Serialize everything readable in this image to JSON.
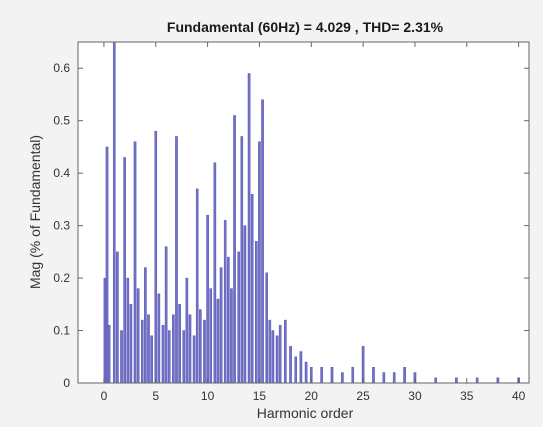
{
  "chart_data": {
    "type": "bar",
    "title": "Fundamental (60Hz) = 4.029 , THD= 2.31%",
    "xlabel": "Harmonic order",
    "ylabel": "Mag (% of Fundamental)",
    "xlim": [
      -2.5,
      41
    ],
    "ylim": [
      0,
      0.65
    ],
    "xticks": [
      0,
      5,
      10,
      15,
      20,
      25,
      30,
      35,
      40
    ],
    "yticks": [
      0,
      0.1,
      0.2,
      0.3,
      0.4,
      0.5,
      0.6
    ],
    "xtick_labels": [
      "0",
      "5",
      "10",
      "15",
      "20",
      "25",
      "30",
      "35",
      "40"
    ],
    "ytick_labels": [
      "0",
      "0.1",
      "0.2",
      "0.3",
      "0.4",
      "0.5",
      "0.6"
    ],
    "grid": false,
    "bar_color": "#7171c6",
    "bar_edge_color": "#4b4bb0",
    "series": [
      {
        "x": [
          0.1,
          0.3,
          0.5,
          1.0,
          1.3,
          1.7,
          2.0,
          2.3,
          2.6,
          3.0,
          3.3,
          3.7,
          4.0,
          4.3,
          4.6,
          5.0,
          5.3,
          5.7,
          6.0,
          6.3,
          6.7,
          7.0,
          7.3,
          7.7,
          8.0,
          8.3,
          8.7,
          9.0,
          9.3,
          9.7,
          10.0,
          10.3,
          10.7,
          11.0,
          11.3,
          11.7,
          12.0,
          12.3,
          12.6,
          13.0,
          13.3,
          13.6,
          14.0,
          14.3,
          14.7,
          15.0,
          15.3,
          15.7,
          16.0,
          16.3,
          16.7,
          17.0,
          17.5,
          18.0,
          18.5,
          19.0,
          19.5,
          20.0,
          21.0,
          22.0,
          23.0,
          24.0,
          25.0,
          26.0,
          27.0,
          28.0,
          29.0,
          30.0,
          32.0,
          34.0,
          36.0,
          38.0,
          40.0
        ],
        "values": [
          0.2,
          0.45,
          0.11,
          0.65,
          0.25,
          0.1,
          0.43,
          0.2,
          0.15,
          0.46,
          0.18,
          0.12,
          0.22,
          0.13,
          0.09,
          0.48,
          0.17,
          0.11,
          0.26,
          0.1,
          0.13,
          0.47,
          0.15,
          0.1,
          0.2,
          0.13,
          0.09,
          0.37,
          0.14,
          0.12,
          0.32,
          0.18,
          0.42,
          0.16,
          0.22,
          0.31,
          0.24,
          0.18,
          0.51,
          0.25,
          0.47,
          0.3,
          0.59,
          0.36,
          0.27,
          0.46,
          0.54,
          0.21,
          0.12,
          0.1,
          0.09,
          0.11,
          0.12,
          0.07,
          0.05,
          0.06,
          0.04,
          0.03,
          0.03,
          0.03,
          0.02,
          0.03,
          0.07,
          0.03,
          0.02,
          0.02,
          0.03,
          0.02,
          0.01,
          0.01,
          0.01,
          0.01,
          0.01
        ]
      }
    ]
  }
}
